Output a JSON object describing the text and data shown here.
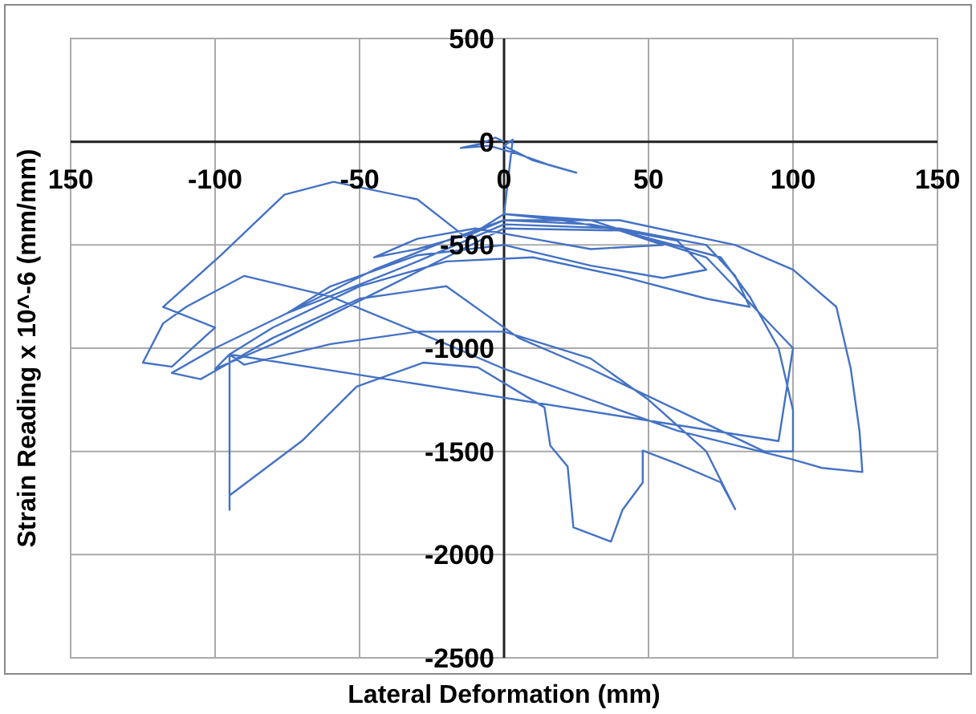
{
  "chart_data": {
    "type": "line",
    "xlabel": "Lateral Deformation (mm)",
    "ylabel": "Strain Reading x 10^-6 (mm/mm)",
    "xlim": [
      -150,
      150
    ],
    "ylim": [
      -2500,
      500
    ],
    "xticks": [
      {
        "value": -150,
        "label": "150"
      },
      -100,
      -50,
      0,
      50,
      100,
      150
    ],
    "yticks": [
      -2500,
      -2000,
      -1500,
      -1000,
      -500,
      0,
      500
    ],
    "grid": true,
    "marker": "none",
    "line_style": "solid",
    "series": [
      {
        "color": "#4472c4",
        "x": [
          0,
          -3,
          -8,
          -15,
          -5,
          5,
          15,
          25,
          10,
          0,
          3,
          0,
          20,
          40,
          55,
          30,
          10,
          -10,
          -30,
          -45,
          -30,
          -10,
          0,
          30,
          60,
          70,
          55,
          30,
          0,
          -30,
          -60,
          -75,
          -55,
          -30,
          0,
          40,
          70,
          80,
          85,
          70,
          40,
          10,
          -20,
          -50,
          -80,
          -95,
          -100,
          -80,
          -50,
          -20,
          0,
          40,
          75,
          85,
          95,
          100,
          100,
          90,
          60,
          30,
          5,
          -20,
          -50,
          -80,
          -105,
          -115,
          -100,
          -75,
          -45,
          -20,
          0,
          40,
          80,
          100,
          115,
          120,
          123,
          124,
          110,
          100,
          60,
          30,
          0,
          -20,
          -60,
          -90,
          -110,
          -118,
          -125,
          -115,
          -100,
          -118,
          -98,
          -76,
          -59,
          -30,
          -13,
          0,
          30,
          70,
          100,
          95,
          -95,
          -95,
          -95,
          -70,
          -51,
          -28,
          -9,
          14,
          16,
          22,
          24,
          37,
          41,
          48,
          48,
          60,
          75,
          80,
          70,
          50,
          30,
          0,
          -30,
          -60,
          -90,
          -95
        ],
        "values": [
          0,
          20,
          -10,
          -30,
          -20,
          -60,
          -110,
          -150,
          -90,
          -20,
          10,
          -350,
          -380,
          -430,
          -500,
          -520,
          -470,
          -420,
          -470,
          -560,
          -520,
          -440,
          -380,
          -400,
          -480,
          -620,
          -660,
          -600,
          -500,
          -550,
          -700,
          -830,
          -720,
          -580,
          -400,
          -420,
          -500,
          -650,
          -800,
          -760,
          -650,
          -560,
          -580,
          -700,
          -900,
          -1030,
          -1100,
          -980,
          -770,
          -560,
          -420,
          -430,
          -560,
          -750,
          -1000,
          -1300,
          -1500,
          -1500,
          -1300,
          -1100,
          -950,
          -700,
          -760,
          -950,
          -1150,
          -1120,
          -1000,
          -830,
          -620,
          -480,
          -380,
          -380,
          -500,
          -620,
          -800,
          -1100,
          -1400,
          -1600,
          -1580,
          -1540,
          -1400,
          -1250,
          -1100,
          -980,
          -750,
          -650,
          -800,
          -880,
          -1070,
          -1090,
          -900,
          -800,
          -550,
          -256,
          -194,
          -279,
          -465,
          -350,
          -380,
          -560,
          -1000,
          -1450,
          -1030,
          -1783,
          -1713,
          -1450,
          -1186,
          -1070,
          -1093,
          -1287,
          -1472,
          -1573,
          -1868,
          -1937,
          -1783,
          -1651,
          -1496,
          -1560,
          -1650,
          -1780,
          -1500,
          -1250,
          -1050,
          -920,
          -920,
          -980,
          -1080,
          -1030
        ]
      }
    ]
  }
}
